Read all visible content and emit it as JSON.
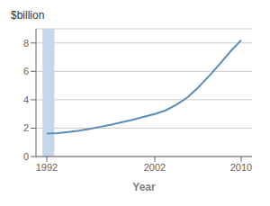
{
  "chart_data": {
    "type": "line",
    "xlabel": "Year",
    "ylabel": "$billion",
    "x": [
      1992,
      1993,
      1994,
      1995,
      1996,
      1997,
      1998,
      1999,
      2000,
      2001,
      2002,
      2003,
      2004,
      2005,
      2006,
      2007,
      2008,
      2009,
      2010
    ],
    "values": [
      1.62,
      1.65,
      1.72,
      1.82,
      1.95,
      2.1,
      2.25,
      2.42,
      2.6,
      2.8,
      3.0,
      3.25,
      3.65,
      4.15,
      4.85,
      5.65,
      6.5,
      7.4,
      8.2
    ],
    "color": "#5b8db8",
    "xlim": [
      1991.0,
      2011.0
    ],
    "ylim": [
      0,
      9
    ],
    "xticks": [
      1992,
      2002,
      2010
    ],
    "yticks": [
      0,
      2,
      4,
      6,
      8
    ],
    "grid": true,
    "shaded_x": [
      1991.6,
      1992.7
    ],
    "shaded_color": "#c5d8ea"
  }
}
